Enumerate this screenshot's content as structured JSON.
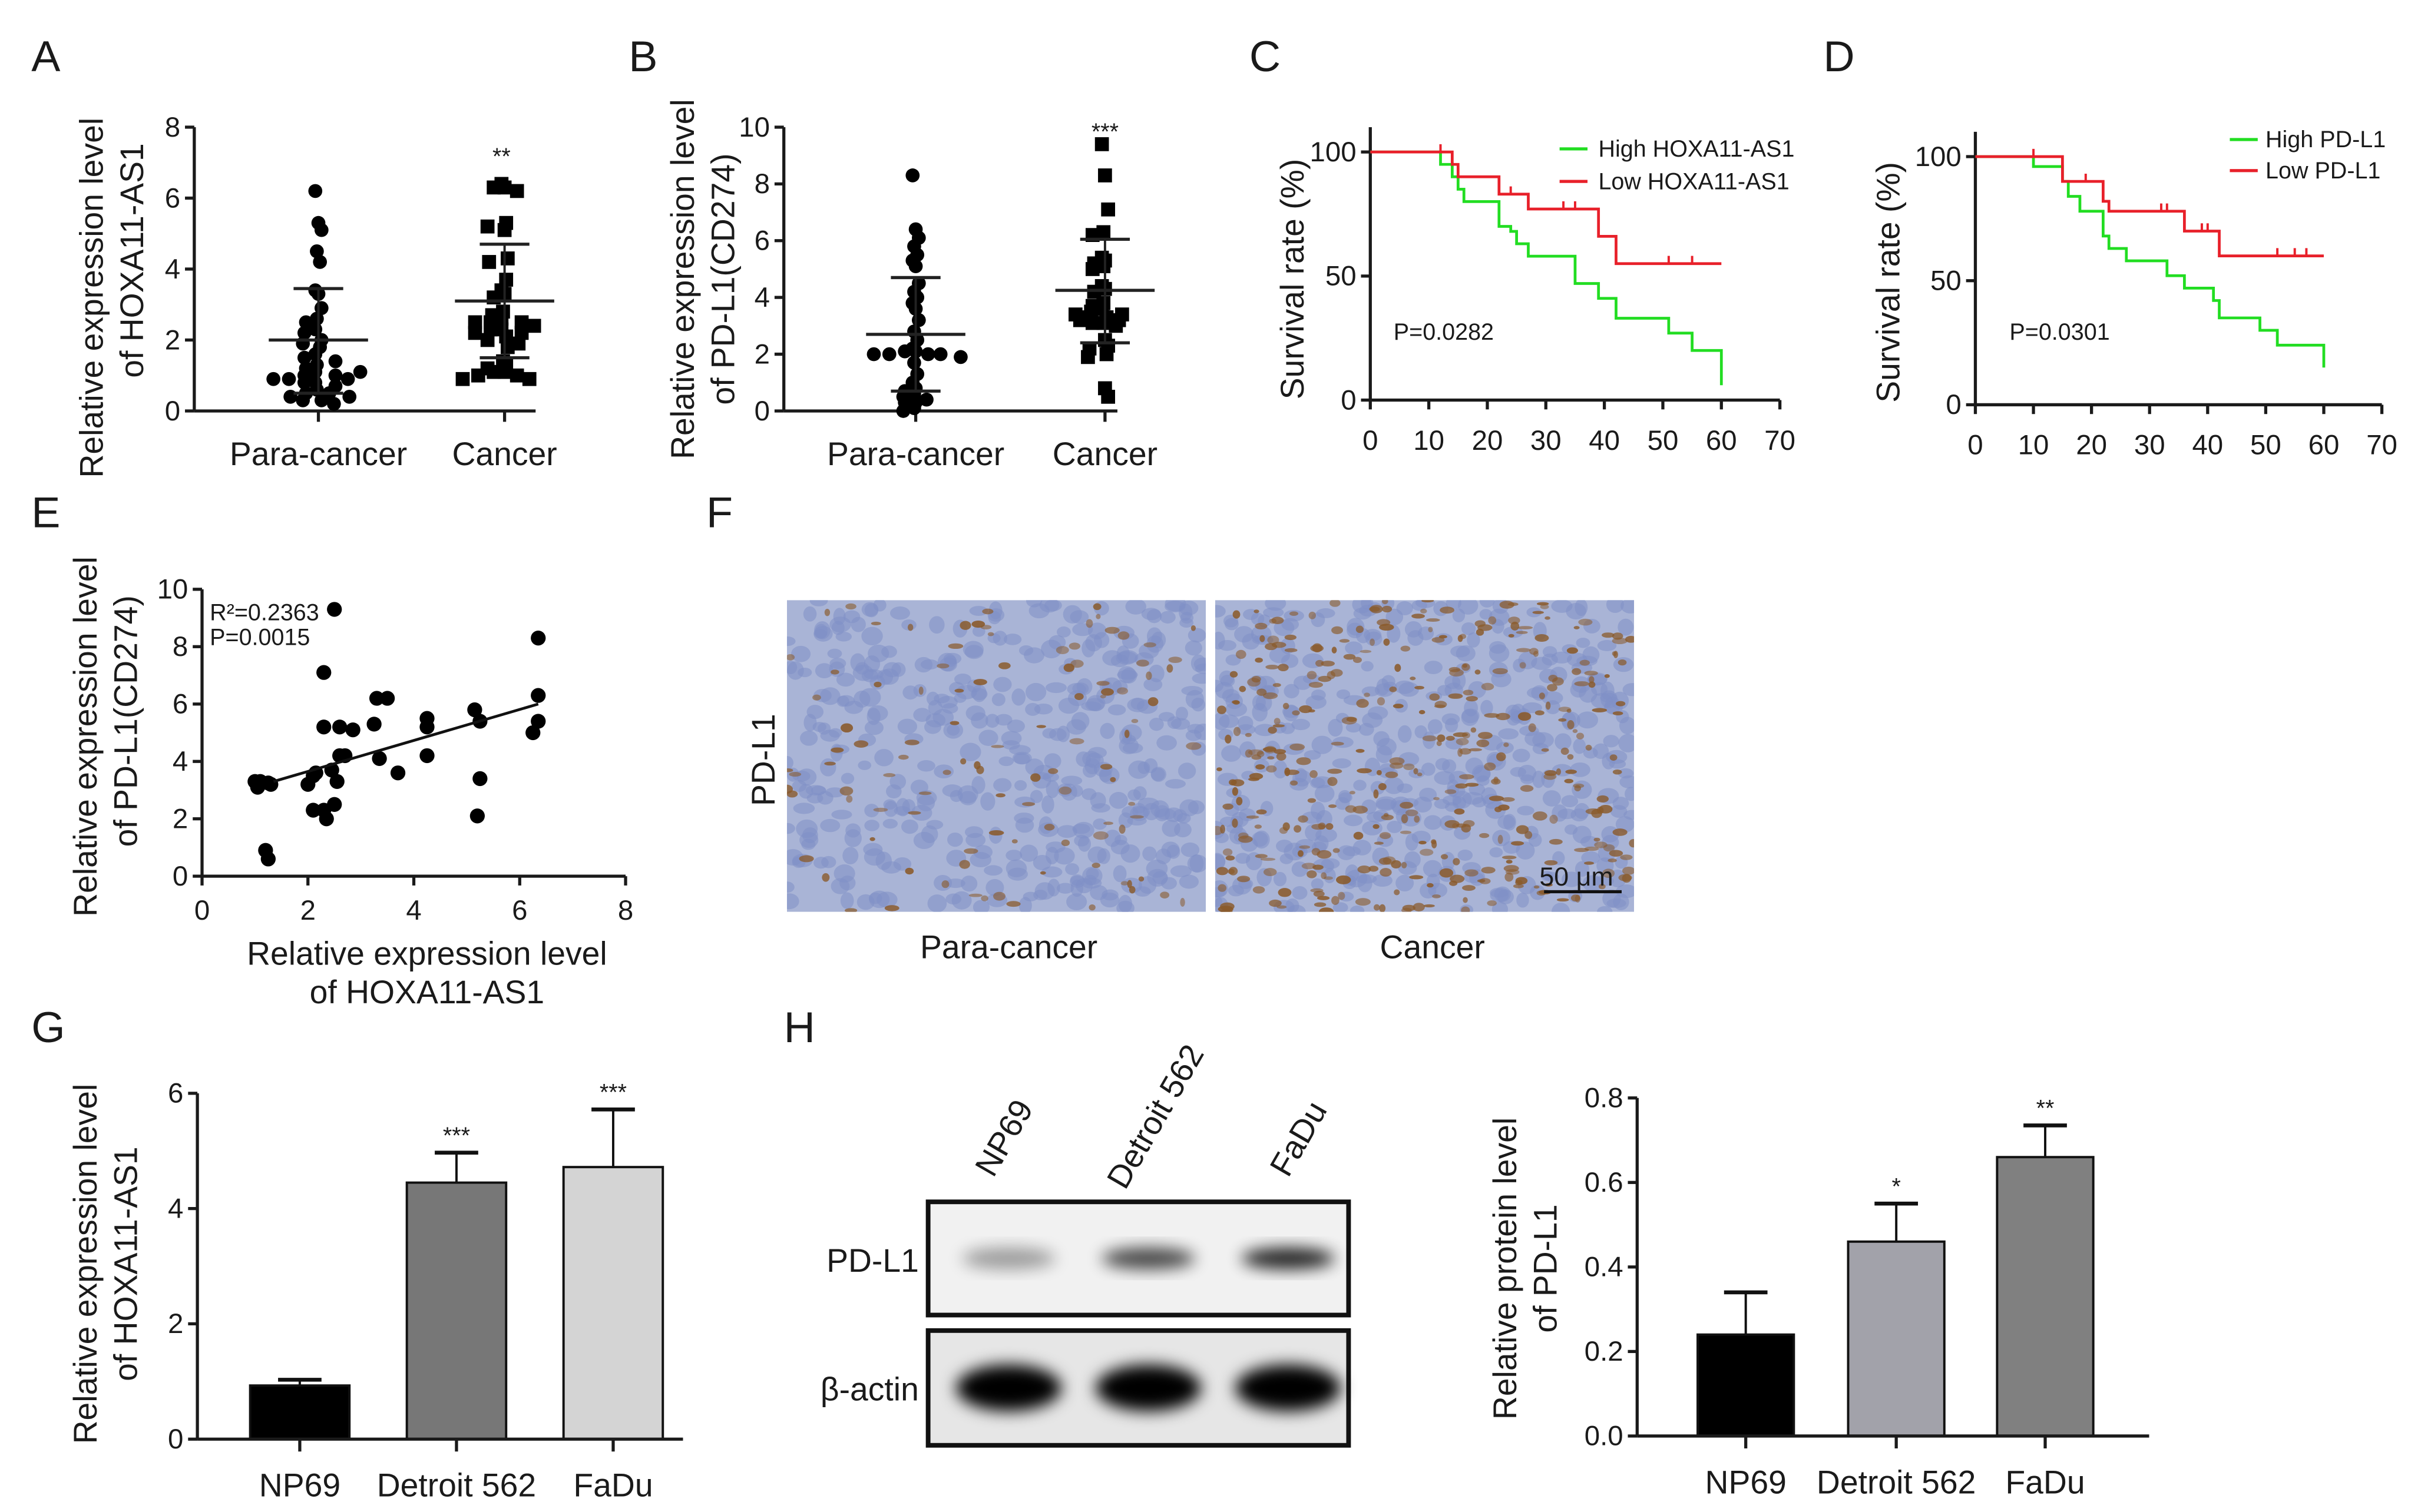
{
  "panel_labels": {
    "A": "A",
    "B": "B",
    "C": "C",
    "D": "D",
    "E": "E",
    "F": "F",
    "G": "G",
    "H": "H"
  },
  "chart_data": [
    {
      "id": "A",
      "type": "scatter",
      "ylabel": [
        "Relative expression level",
        "of HOXA11-AS1"
      ],
      "categories": [
        "Para-cancer",
        "Cancer"
      ],
      "ylim": [
        0,
        8
      ],
      "yticks": [
        0,
        2,
        4,
        6,
        8
      ],
      "markers": [
        "circle",
        "square"
      ],
      "groups": [
        {
          "values": [
            6.2,
            5.3,
            5.1,
            4.5,
            4.2,
            3.4,
            3.3,
            2.9,
            2.6,
            2.5,
            2.3,
            2.2,
            2.0,
            1.9,
            1.8,
            1.6,
            1.5,
            1.4,
            1.3,
            1.2,
            1.1,
            1.0,
            1.0,
            0.9,
            0.9,
            0.8,
            0.8,
            0.7,
            0.6,
            0.5,
            0.5,
            0.4,
            0.3,
            0.3,
            0.2,
            0.9,
            1.1,
            0.4
          ],
          "mean": 2.0,
          "sd_low": 0.5,
          "sd_high": 3.45
        },
        {
          "values": [
            6.4,
            6.3,
            6.3,
            6.2,
            5.3,
            5.2,
            5.1,
            4.3,
            4.2,
            3.7,
            3.4,
            3.3,
            3.2,
            2.8,
            2.7,
            2.6,
            2.5,
            2.5,
            2.5,
            2.4,
            2.3,
            2.3,
            2.2,
            2.2,
            2.1,
            2.0,
            1.9,
            1.8,
            1.4,
            1.3,
            1.2,
            1.1,
            1.1,
            1.0,
            1.0,
            0.9,
            0.9
          ],
          "mean": 3.1,
          "sd_low": 1.5,
          "sd_high": 4.7,
          "significance": "**"
        }
      ]
    },
    {
      "id": "B",
      "type": "scatter",
      "ylabel": [
        "Relative expression level",
        "of PD-L1(CD274)"
      ],
      "categories": [
        "Para-cancer",
        "Cancer"
      ],
      "ylim": [
        0,
        10
      ],
      "yticks": [
        0,
        2,
        4,
        6,
        8,
        10
      ],
      "markers": [
        "circle",
        "square"
      ],
      "groups": [
        {
          "values": [
            8.3,
            6.4,
            6.1,
            5.8,
            5.5,
            5.3,
            5.1,
            4.5,
            4.2,
            4.0,
            3.8,
            3.6,
            3.2,
            2.8,
            2.5,
            2.2,
            2.1,
            2.1,
            2.0,
            2.0,
            2.0,
            2.0,
            1.9,
            1.7,
            1.3,
            1.0,
            0.8,
            0.7,
            0.6,
            0.5,
            0.4,
            0.3,
            0.3,
            0.1,
            0.0
          ],
          "mean": 2.7,
          "sd_low": 0.7,
          "sd_high": 4.7
        },
        {
          "values": [
            9.4,
            8.3,
            7.1,
            6.3,
            6.2,
            5.4,
            5.3,
            5.2,
            5.1,
            5.0,
            4.4,
            4.3,
            4.2,
            3.8,
            3.7,
            3.6,
            3.5,
            3.4,
            3.4,
            3.3,
            3.3,
            3.2,
            3.2,
            3.1,
            3.1,
            3.0,
            2.5,
            2.3,
            2.2,
            2.0,
            1.9,
            0.8,
            0.5
          ],
          "mean": 4.25,
          "sd_low": 2.4,
          "sd_high": 6.05,
          "significance": "***"
        }
      ]
    },
    {
      "id": "C",
      "type": "line",
      "subtype": "kaplan-meier",
      "ylabel": "Survival rate (%)",
      "xlim": [
        0,
        70
      ],
      "xticks": [
        0,
        10,
        20,
        30,
        40,
        50,
        60,
        70
      ],
      "ylim": [
        0,
        100
      ],
      "yticks": [
        0,
        50,
        100
      ],
      "annotation": "P=0.0282",
      "legend_position": "top-right",
      "series": [
        {
          "name": "High HOXA11-AS1",
          "color": "#22dd22",
          "x": [
            0,
            12,
            14,
            15,
            16,
            22,
            24,
            25,
            27,
            35,
            39,
            42,
            51,
            55,
            60
          ],
          "y": [
            100,
            95,
            90,
            85,
            80,
            70,
            68,
            63,
            58,
            47,
            41,
            33,
            27,
            20,
            6
          ],
          "end": 60
        },
        {
          "name": "Low HOXA11-AS1",
          "color": "#e8202a",
          "x": [
            0,
            14,
            15,
            22,
            27,
            39,
            42
          ],
          "y": [
            100,
            95,
            90,
            83,
            77,
            66,
            55
          ],
          "end": 60,
          "censored": [
            12,
            24,
            33,
            35,
            51,
            55
          ]
        }
      ]
    },
    {
      "id": "D",
      "type": "line",
      "subtype": "kaplan-meier",
      "ylabel": "Survival rate (%)",
      "xlim": [
        0,
        70
      ],
      "xticks": [
        0,
        10,
        20,
        30,
        40,
        50,
        60,
        70
      ],
      "ylim": [
        0,
        100
      ],
      "yticks": [
        0,
        50,
        100
      ],
      "annotation": "P=0.0301",
      "legend_position": "top-right",
      "series": [
        {
          "name": "High PD-L1",
          "color": "#22dd22",
          "x": [
            0,
            10,
            15,
            16,
            18,
            22,
            23,
            26,
            33,
            36,
            41,
            42,
            49,
            52,
            60
          ],
          "y": [
            100,
            96,
            90,
            84,
            78,
            68,
            63,
            58,
            52,
            47,
            42,
            35,
            30,
            24,
            15
          ],
          "end": 60
        },
        {
          "name": "Low PD-L1",
          "color": "#e8202a",
          "x": [
            0,
            15,
            22,
            23,
            36,
            42
          ],
          "y": [
            100,
            90,
            82,
            78,
            70,
            60
          ],
          "end": 60,
          "censored": [
            10,
            19,
            32,
            33,
            39,
            40,
            52,
            55,
            57
          ]
        }
      ]
    },
    {
      "id": "E",
      "type": "scatter",
      "ylabel": [
        "Relative expression level",
        "of PD-L1(CD274)"
      ],
      "xlabel": [
        "Relative expression level",
        "of HOXA11-AS1"
      ],
      "xlim": [
        0,
        8
      ],
      "xticks": [
        0,
        2,
        4,
        6,
        8
      ],
      "ylim": [
        0,
        10
      ],
      "yticks": [
        0,
        2,
        4,
        6,
        8,
        10
      ],
      "annotation": [
        "R²=0.2363",
        "P=0.0015"
      ],
      "points": [
        [
          1.0,
          3.3
        ],
        [
          1.05,
          3.1
        ],
        [
          1.1,
          3.3
        ],
        [
          1.3,
          3.2
        ],
        [
          1.25,
          3.25
        ],
        [
          1.2,
          0.9
        ],
        [
          1.25,
          0.6
        ],
        [
          2.0,
          3.2
        ],
        [
          2.1,
          3.5
        ],
        [
          2.15,
          3.6
        ],
        [
          2.1,
          2.3
        ],
        [
          2.3,
          2.3
        ],
        [
          2.35,
          2.0
        ],
        [
          2.5,
          2.5
        ],
        [
          2.45,
          3.7
        ],
        [
          2.55,
          3.3
        ],
        [
          2.3,
          7.1
        ],
        [
          2.5,
          9.3
        ],
        [
          2.3,
          5.2
        ],
        [
          2.6,
          5.2
        ],
        [
          2.85,
          5.1
        ],
        [
          2.6,
          4.2
        ],
        [
          2.7,
          4.2
        ],
        [
          3.25,
          5.3
        ],
        [
          3.3,
          6.2
        ],
        [
          3.5,
          6.2
        ],
        [
          3.35,
          4.1
        ],
        [
          3.7,
          3.6
        ],
        [
          4.25,
          5.5
        ],
        [
          4.25,
          5.2
        ],
        [
          4.25,
          4.2
        ],
        [
          5.15,
          5.8
        ],
        [
          5.25,
          5.4
        ],
        [
          5.25,
          3.4
        ],
        [
          5.2,
          2.1
        ],
        [
          6.25,
          5.0
        ],
        [
          6.35,
          5.4
        ],
        [
          6.35,
          6.3
        ],
        [
          6.35,
          8.3
        ]
      ],
      "fit_line": {
        "x": [
          1.35,
          6.35
        ],
        "y": [
          3.3,
          6.0
        ]
      }
    },
    {
      "id": "G",
      "type": "bar",
      "ylabel": [
        "Relative expression level",
        "of HOXA11-AS1"
      ],
      "categories": [
        "NP69",
        "Detroit 562",
        "FaDu"
      ],
      "values": [
        0.93,
        4.45,
        4.72
      ],
      "errors": [
        0.1,
        0.52,
        1.0
      ],
      "significance": [
        "",
        "***",
        "***"
      ],
      "colors": [
        "#000000",
        "#777777",
        "#d4d4d4"
      ],
      "ylim": [
        0,
        6
      ],
      "yticks": [
        0,
        2,
        4,
        6
      ]
    },
    {
      "id": "H",
      "type": "bar",
      "ylabel": [
        "Relative protein level",
        "of PD-L1"
      ],
      "categories": [
        "NP69",
        "Detroit 562",
        "FaDu"
      ],
      "values": [
        0.24,
        0.46,
        0.66
      ],
      "errors": [
        0.1,
        0.09,
        0.075
      ],
      "significance": [
        "",
        "*",
        "**"
      ],
      "colors": [
        "#000000",
        "#a2a2aa",
        "#808080"
      ],
      "ylim": [
        0,
        0.8
      ],
      "yticks": [
        "0.0",
        "0.2",
        "0.4",
        "0.6",
        "0.8"
      ]
    }
  ],
  "panel_F": {
    "row_label": "PD-L1",
    "images": [
      "Para-cancer",
      "Cancer"
    ],
    "brown_stain_density": [
      0.15,
      0.55
    ],
    "scale_bar": "50 μm",
    "colors": {
      "tissue": "#a9b4d6",
      "nuclei": "#7f8fc6",
      "stain": "#8a5a2a"
    }
  },
  "panel_H_blot": {
    "lanes": [
      "NP69",
      "Detroit 562",
      "FaDu"
    ],
    "rows": [
      {
        "label": "PD-L1",
        "intensity": [
          0.35,
          0.7,
          0.85
        ]
      },
      {
        "label": "β-actin",
        "intensity": [
          1,
          1,
          1
        ]
      }
    ]
  }
}
